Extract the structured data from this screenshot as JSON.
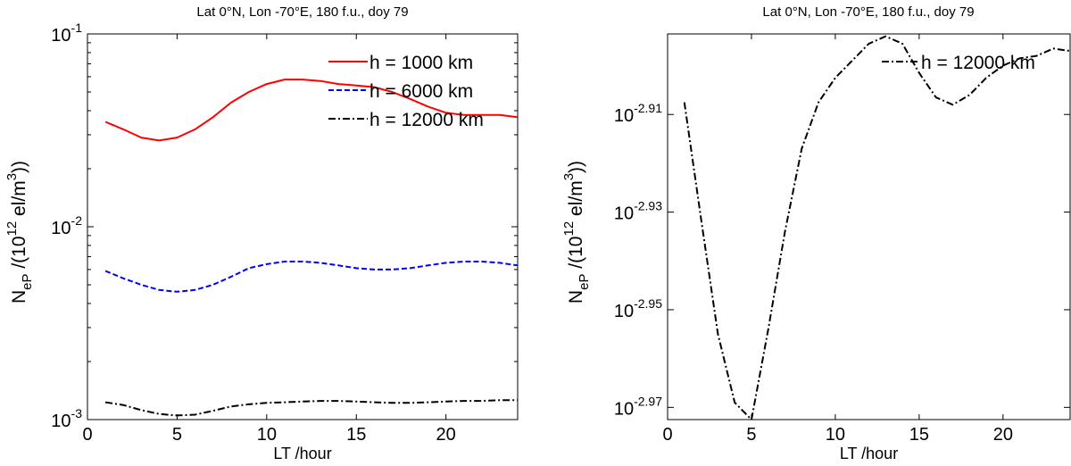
{
  "chart_data": [
    {
      "type": "line",
      "title": "Lat 0°N, Lon -70°E, 180 f.u., doy 79",
      "xlabel": "LT /hour",
      "ylabel": {
        "base": "N",
        "sub": "eP",
        "rest1": " /(10",
        "sup": "12",
        "rest2": " el/m",
        "sup2": "3",
        "rest3": "))"
      },
      "xlim": [
        0,
        24
      ],
      "ylim": [
        0.001,
        0.1
      ],
      "yscale": "log",
      "x_ticks": [
        0,
        5,
        10,
        15,
        20
      ],
      "y_ticks": [
        {
          "value": 0.1,
          "base": "10",
          "exp": "-1"
        },
        {
          "value": 0.01,
          "base": "10",
          "exp": "-2"
        },
        {
          "value": 0.001,
          "base": "10",
          "exp": "-3"
        }
      ],
      "grid": false,
      "legend_position": "top-right",
      "series": [
        {
          "name": "h = 1000 km",
          "color": "#ff0000",
          "style": "solid",
          "x": [
            1,
            2,
            3,
            4,
            5,
            6,
            7,
            8,
            9,
            10,
            11,
            12,
            13,
            14,
            15,
            16,
            17,
            18,
            19,
            20,
            21,
            22,
            23,
            24
          ],
          "y": [
            0.035,
            0.032,
            0.029,
            0.028,
            0.029,
            0.032,
            0.037,
            0.044,
            0.05,
            0.055,
            0.058,
            0.058,
            0.057,
            0.055,
            0.054,
            0.053,
            0.05,
            0.046,
            0.042,
            0.039,
            0.038,
            0.038,
            0.038,
            0.037
          ]
        },
        {
          "name": "h = 6000 km",
          "color": "#0000ff",
          "style": "dashed",
          "x": [
            1,
            2,
            3,
            4,
            5,
            6,
            7,
            8,
            9,
            10,
            11,
            12,
            13,
            14,
            15,
            16,
            17,
            18,
            19,
            20,
            21,
            22,
            23,
            24
          ],
          "y": [
            0.0059,
            0.0054,
            0.005,
            0.0047,
            0.0046,
            0.0047,
            0.005,
            0.0055,
            0.0061,
            0.0064,
            0.0066,
            0.0066,
            0.0065,
            0.0063,
            0.0061,
            0.006,
            0.006,
            0.0061,
            0.0063,
            0.0065,
            0.0066,
            0.0066,
            0.0065,
            0.0063
          ]
        },
        {
          "name": "h = 12000 km",
          "color": "#000000",
          "style": "dashdot",
          "x": [
            1,
            2,
            3,
            4,
            5,
            6,
            7,
            8,
            9,
            10,
            11,
            12,
            13,
            14,
            15,
            16,
            17,
            18,
            19,
            20,
            21,
            22,
            23,
            24
          ],
          "y": [
            0.00123,
            0.00119,
            0.00112,
            0.00107,
            0.00105,
            0.00106,
            0.00111,
            0.00117,
            0.0012,
            0.00122,
            0.00123,
            0.00124,
            0.00125,
            0.00125,
            0.00124,
            0.00123,
            0.00122,
            0.00122,
            0.00123,
            0.00124,
            0.00125,
            0.00125,
            0.00126,
            0.00126
          ]
        }
      ]
    },
    {
      "type": "line",
      "title": "Lat 0°N, Lon -70°E, 180 f.u., doy 79",
      "xlabel": "LT /hour",
      "ylabel": {
        "base": "N",
        "sub": "eP",
        "rest1": " /(10",
        "sup": "12",
        "rest2": " el/m",
        "sup2": "3",
        "rest3": "))"
      },
      "xlim": [
        0,
        24
      ],
      "ylim": [
        -2.9725,
        -2.8935
      ],
      "yscale": "log (exponent axis)",
      "x_ticks": [
        0,
        5,
        10,
        15,
        20
      ],
      "y_ticks": [
        {
          "value": -2.91,
          "base": "10",
          "exp": "-2.91"
        },
        {
          "value": -2.93,
          "base": "10",
          "exp": "-2.93"
        },
        {
          "value": -2.95,
          "base": "10",
          "exp": "-2.95"
        },
        {
          "value": -2.97,
          "base": "10",
          "exp": "-2.97"
        }
      ],
      "grid": false,
      "legend_position": "top-right",
      "series": [
        {
          "name": "h = 12000 km",
          "color": "#000000",
          "style": "dashdot",
          "x": [
            1,
            2,
            3,
            4,
            5,
            6,
            7,
            8,
            9,
            10,
            11,
            12,
            13,
            14,
            15,
            16,
            17,
            18,
            19,
            20,
            21,
            22,
            23,
            24
          ],
          "y": [
            -2.9075,
            -2.9315,
            -2.955,
            -2.969,
            -2.9725,
            -2.954,
            -2.934,
            -2.917,
            -2.9075,
            -2.9025,
            -2.899,
            -2.8955,
            -2.894,
            -2.8955,
            -2.9015,
            -2.9065,
            -2.908,
            -2.906,
            -2.9025,
            -2.9,
            -2.8985,
            -2.898,
            -2.8965,
            -2.897
          ]
        }
      ]
    }
  ]
}
